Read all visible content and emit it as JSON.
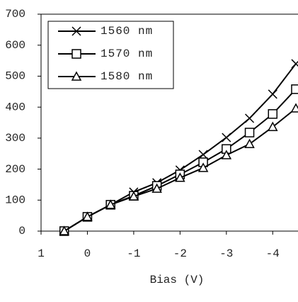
{
  "chart_data": {
    "type": "line",
    "x_label": "Bias (V)",
    "x": [
      0.5,
      0,
      -0.5,
      -1,
      -1.5,
      -2,
      -2.5,
      -3,
      -3.5,
      -4,
      -4.5
    ],
    "series": [
      {
        "name": "1560 nm",
        "color": "#000000",
        "marker": "x",
        "values": [
          0,
          46,
          85,
          126,
          156,
          197,
          247,
          302,
          364,
          442,
          540
        ]
      },
      {
        "name": "1570 nm",
        "color": "#000000",
        "marker": "square",
        "values": [
          0,
          46,
          85,
          114,
          146,
          183,
          222,
          265,
          318,
          378,
          458
        ]
      },
      {
        "name": "1580 nm",
        "color": "#000000",
        "marker": "triangle",
        "values": [
          0,
          46,
          85,
          112,
          137,
          172,
          204,
          245,
          281,
          336,
          396
        ]
      }
    ],
    "xlim": [
      1,
      -4.5
    ],
    "xticks": [
      1,
      0,
      -1,
      -2,
      -3,
      -4
    ],
    "ylim": [
      0,
      700
    ],
    "yticks": [
      0,
      100,
      200,
      300,
      400,
      500,
      600,
      700
    ],
    "legend": "upper-left"
  }
}
